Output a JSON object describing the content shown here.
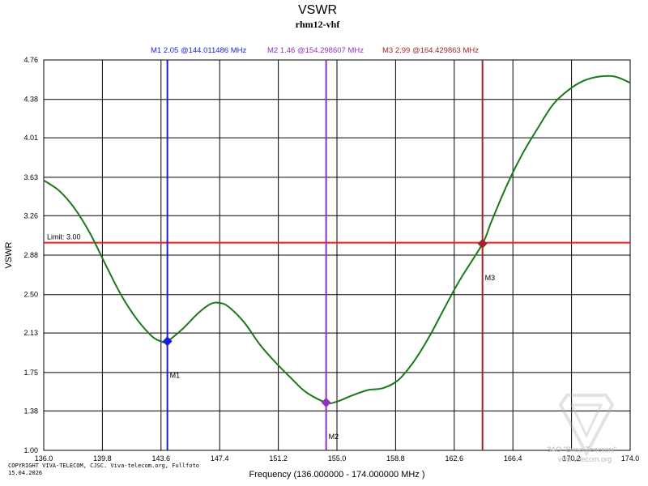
{
  "chart_data": {
    "type": "line",
    "title": "VSWR",
    "subtitle": "rhm12-vhf",
    "xlabel": "Frequency (136.000000 - 174.000000 MHz )",
    "ylabel": "VSWR",
    "xlim": [
      136.0,
      174.0
    ],
    "ylim": [
      1.0,
      4.76
    ],
    "x_ticks": [
      136.0,
      139.8,
      143.6,
      147.4,
      151.2,
      155.0,
      158.8,
      162.6,
      166.4,
      170.2,
      174.0
    ],
    "x_tick_labels": [
      "136.0",
      "139.8",
      "143.6",
      "147.4",
      "151.2",
      "155.0",
      "158.8",
      "162.6",
      "166.4",
      "170.2",
      "174.0"
    ],
    "y_ticks": [
      1.0,
      1.38,
      1.75,
      2.13,
      2.5,
      2.88,
      3.26,
      3.63,
      4.01,
      4.38,
      4.76
    ],
    "y_tick_labels": [
      "1.00",
      "1.38",
      "1.75",
      "2.13",
      "2.50",
      "2.88",
      "3.26",
      "3.63",
      "4.01",
      "4.38",
      "4.76"
    ],
    "grid": true,
    "series": [
      {
        "name": "VSWR",
        "color": "#1a7a1a",
        "x": [
          136.0,
          137.0,
          138.0,
          139.0,
          140.0,
          141.0,
          142.0,
          143.0,
          143.6,
          144.0,
          145.0,
          146.0,
          146.8,
          147.4,
          148.0,
          149.0,
          150.0,
          151.0,
          152.0,
          153.0,
          154.3,
          155.0,
          156.0,
          157.0,
          158.0,
          159.0,
          160.0,
          161.0,
          162.0,
          163.0,
          164.43,
          165.0,
          166.0,
          167.0,
          168.0,
          169.0,
          170.0,
          171.0,
          172.0,
          173.0,
          174.0
        ],
        "y": [
          3.6,
          3.5,
          3.33,
          3.09,
          2.79,
          2.5,
          2.27,
          2.1,
          2.05,
          2.05,
          2.17,
          2.32,
          2.41,
          2.42,
          2.38,
          2.23,
          2.02,
          1.85,
          1.7,
          1.56,
          1.46,
          1.47,
          1.53,
          1.58,
          1.6,
          1.68,
          1.86,
          2.1,
          2.38,
          2.65,
          2.99,
          3.2,
          3.55,
          3.85,
          4.1,
          4.33,
          4.47,
          4.56,
          4.6,
          4.6,
          4.54
        ]
      }
    ],
    "limit": {
      "label": "Limit: 3.00",
      "value": 3.0,
      "color": "#e82020"
    },
    "markers": [
      {
        "name": "M1",
        "x": 144.011486,
        "y": 2.05,
        "color": "#1c1ce0",
        "info": "M1  2.05 @144.011486 MHz"
      },
      {
        "name": "M2",
        "x": 154.298607,
        "y": 1.46,
        "color": "#9030c0",
        "info": "M2  1.46 @154.298607 MHz"
      },
      {
        "name": "M3",
        "x": 164.429863,
        "y": 2.99,
        "color": "#9a2828",
        "info": "M3  2.99 @164.429863 MHz"
      }
    ]
  },
  "footer": {
    "copyright": "COPYRIGHT VIVA-TELECOM, CJSC. Viva-telecom.org, Fullfoto",
    "date": "15.04.2026"
  },
  "watermark": {
    "line1": "ЗАО \"Вива-Телеком\"",
    "line2": "viva-telecom.org"
  }
}
